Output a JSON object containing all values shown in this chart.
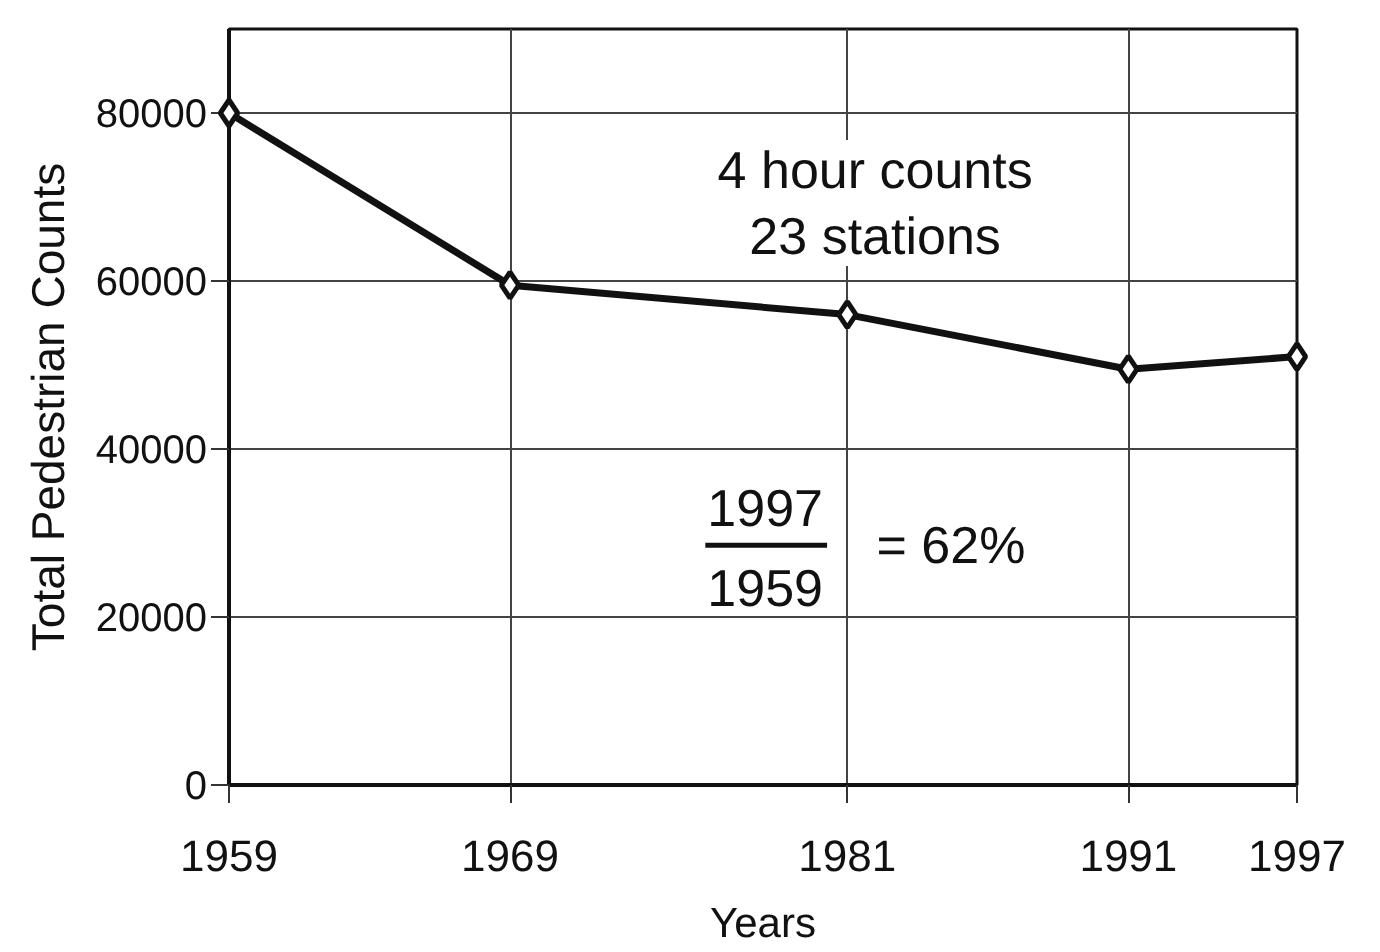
{
  "chart_data": {
    "type": "line",
    "xlabel": "Years",
    "ylabel": "Total Pedestrian Counts",
    "x": [
      1959,
      1969,
      1981,
      1991,
      1997
    ],
    "series": [
      {
        "color": "#111111",
        "values": [
          80000,
          59500,
          56000,
          49500,
          51000
        ]
      }
    ],
    "xlim": [
      1959,
      1997
    ],
    "ylim": [
      0,
      90000
    ],
    "xticks": [
      1959,
      1969,
      1981,
      1991,
      1997
    ],
    "yticks": [
      0,
      20000,
      40000,
      60000,
      80000
    ],
    "grid": true,
    "marker": "diamond",
    "line_style": "solid",
    "annotations": [
      "4 hour counts\n23 stations",
      "1997",
      "1959",
      "= 62%"
    ]
  }
}
